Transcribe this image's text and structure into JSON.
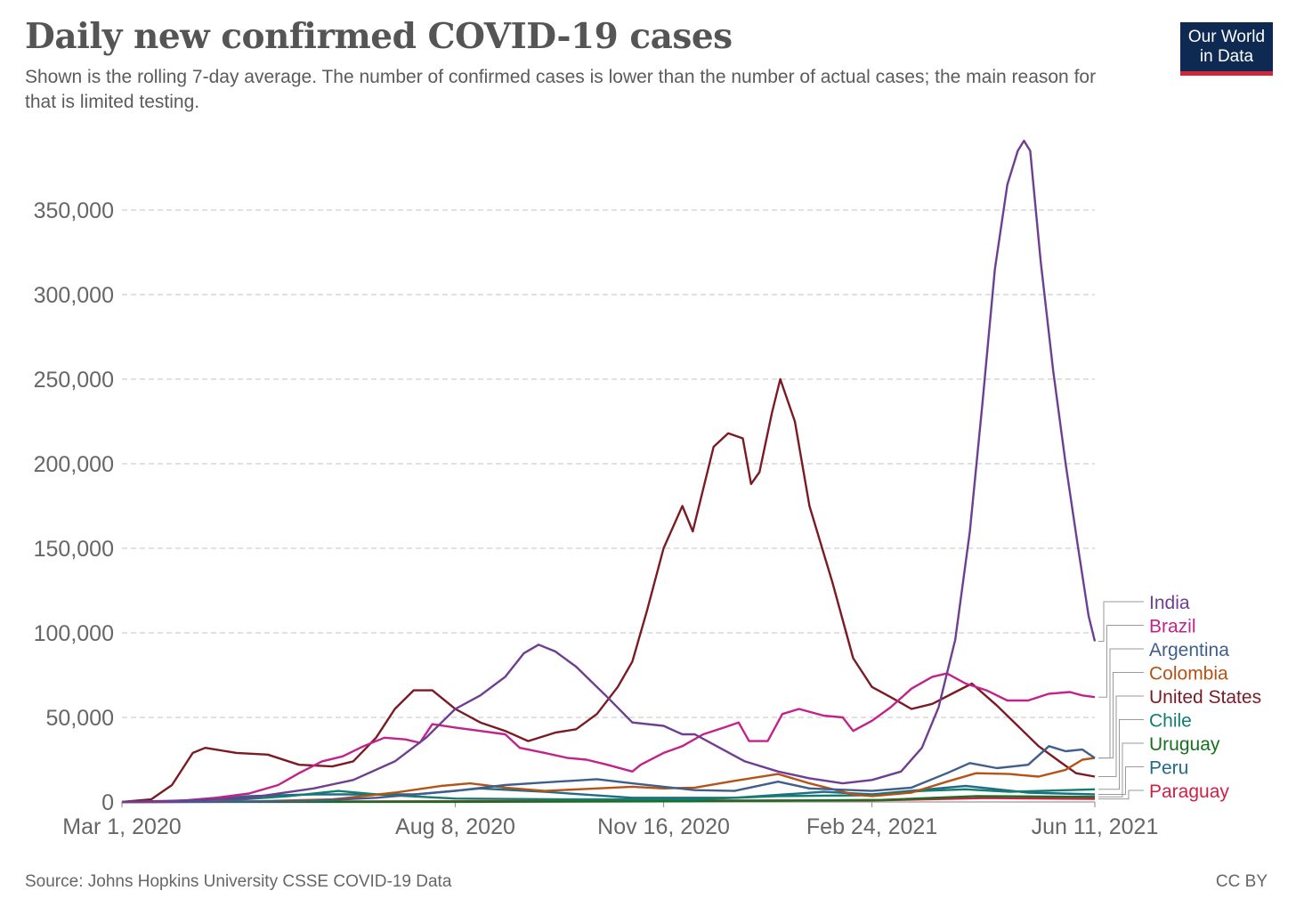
{
  "header": {
    "title": "Daily new confirmed COVID-19 cases",
    "subtitle": "Shown is the rolling 7-day average. The number of confirmed cases is lower than the number of actual cases; the main reason for that is limited testing.",
    "logo_line1": "Our World",
    "logo_line2": "in Data"
  },
  "footer": {
    "source": "Source: Johns Hopkins University CSSE COVID-19 Data",
    "license": "CC BY"
  },
  "chart_data": {
    "type": "line",
    "title": "Daily new confirmed COVID-19 cases",
    "subtitle": "Shown is the rolling 7-day average. The number of confirmed cases is lower than the number of actual cases; the main reason for that is limited testing.",
    "xlabel": "",
    "ylabel": "",
    "xlim": [
      "2020-03-01",
      "2021-06-11"
    ],
    "ylim": [
      0,
      390000
    ],
    "x_ticks": [
      "Mar 1, 2020",
      "Aug 8, 2020",
      "Nov 16, 2020",
      "Feb 24, 2021",
      "Jun 11, 2021"
    ],
    "y_ticks": [
      {
        "value": 0,
        "label": "0"
      },
      {
        "value": 50000,
        "label": "50,000"
      },
      {
        "value": 100000,
        "label": "100,000"
      },
      {
        "value": 150000,
        "label": "150,000"
      },
      {
        "value": 200000,
        "label": "200,000"
      },
      {
        "value": 250000,
        "label": "250,000"
      },
      {
        "value": 300000,
        "label": "300,000"
      },
      {
        "value": 350000,
        "label": "350,000"
      }
    ],
    "grid": "horizontal dashed",
    "legend": "right, labels at line ends",
    "series": [
      {
        "name": "India",
        "color": "#6d3e91",
        "points": [
          [
            "2020-03-01",
            0
          ],
          [
            "2020-04-01",
            900
          ],
          [
            "2020-05-01",
            2500
          ],
          [
            "2020-06-01",
            8000
          ],
          [
            "2020-06-20",
            13000
          ],
          [
            "2020-07-10",
            24000
          ],
          [
            "2020-07-25",
            38000
          ],
          [
            "2020-08-08",
            55000
          ],
          [
            "2020-08-20",
            63000
          ],
          [
            "2020-09-01",
            74000
          ],
          [
            "2020-09-10",
            88000
          ],
          [
            "2020-09-17",
            93000
          ],
          [
            "2020-09-25",
            89000
          ],
          [
            "2020-10-05",
            80000
          ],
          [
            "2020-10-20",
            62000
          ],
          [
            "2020-11-01",
            47000
          ],
          [
            "2020-11-16",
            45000
          ],
          [
            "2020-11-25",
            40000
          ],
          [
            "2020-12-01",
            40000
          ],
          [
            "2020-12-10",
            34000
          ],
          [
            "2020-12-25",
            24000
          ],
          [
            "2021-01-10",
            18000
          ],
          [
            "2021-01-25",
            14000
          ],
          [
            "2021-02-10",
            11000
          ],
          [
            "2021-02-24",
            13000
          ],
          [
            "2021-03-10",
            18000
          ],
          [
            "2021-03-20",
            32000
          ],
          [
            "2021-03-28",
            56000
          ],
          [
            "2021-04-05",
            96000
          ],
          [
            "2021-04-12",
            160000
          ],
          [
            "2021-04-18",
            235000
          ],
          [
            "2021-04-24",
            315000
          ],
          [
            "2021-04-30",
            365000
          ],
          [
            "2021-05-05",
            385000
          ],
          [
            "2021-05-08",
            391000
          ],
          [
            "2021-05-11",
            385000
          ],
          [
            "2021-05-16",
            320000
          ],
          [
            "2021-05-22",
            255000
          ],
          [
            "2021-05-28",
            200000
          ],
          [
            "2021-06-03",
            150000
          ],
          [
            "2021-06-08",
            110000
          ],
          [
            "2021-06-11",
            95000
          ]
        ]
      },
      {
        "name": "Brazil",
        "color": "#c2228b",
        "points": [
          [
            "2020-03-01",
            0
          ],
          [
            "2020-03-20",
            200
          ],
          [
            "2020-04-01",
            1000
          ],
          [
            "2020-04-15",
            2500
          ],
          [
            "2020-05-01",
            5000
          ],
          [
            "2020-05-15",
            10000
          ],
          [
            "2020-05-25",
            17000
          ],
          [
            "2020-06-05",
            24000
          ],
          [
            "2020-06-15",
            27000
          ],
          [
            "2020-06-25",
            33000
          ],
          [
            "2020-07-05",
            38000
          ],
          [
            "2020-07-15",
            37000
          ],
          [
            "2020-07-22",
            35000
          ],
          [
            "2020-07-28",
            46000
          ],
          [
            "2020-08-08",
            44000
          ],
          [
            "2020-08-20",
            42000
          ],
          [
            "2020-09-01",
            40000
          ],
          [
            "2020-09-08",
            32000
          ],
          [
            "2020-09-20",
            29000
          ],
          [
            "2020-10-01",
            26000
          ],
          [
            "2020-10-10",
            25000
          ],
          [
            "2020-10-20",
            22000
          ],
          [
            "2020-11-01",
            18000
          ],
          [
            "2020-11-05",
            22000
          ],
          [
            "2020-11-16",
            29000
          ],
          [
            "2020-11-25",
            33000
          ],
          [
            "2020-12-05",
            40000
          ],
          [
            "2020-12-15",
            44000
          ],
          [
            "2020-12-22",
            47000
          ],
          [
            "2020-12-27",
            36000
          ],
          [
            "2021-01-05",
            36000
          ],
          [
            "2021-01-12",
            52000
          ],
          [
            "2021-01-20",
            55000
          ],
          [
            "2021-02-01",
            51000
          ],
          [
            "2021-02-10",
            50000
          ],
          [
            "2021-02-15",
            42000
          ],
          [
            "2021-02-24",
            48000
          ],
          [
            "2021-03-05",
            56000
          ],
          [
            "2021-03-15",
            67000
          ],
          [
            "2021-03-25",
            74000
          ],
          [
            "2021-04-01",
            76000
          ],
          [
            "2021-04-10",
            70000
          ],
          [
            "2021-04-20",
            66000
          ],
          [
            "2021-04-30",
            60000
          ],
          [
            "2021-05-10",
            60000
          ],
          [
            "2021-05-20",
            64000
          ],
          [
            "2021-05-30",
            65000
          ],
          [
            "2021-06-05",
            63000
          ],
          [
            "2021-06-11",
            62000
          ]
        ]
      },
      {
        "name": "Argentina",
        "color": "#3f5e8c",
        "points": [
          [
            "2020-03-01",
            0
          ],
          [
            "2020-05-01",
            200
          ],
          [
            "2020-06-01",
            700
          ],
          [
            "2020-07-01",
            2500
          ],
          [
            "2020-08-08",
            6500
          ],
          [
            "2020-09-01",
            10000
          ],
          [
            "2020-09-20",
            11500
          ],
          [
            "2020-10-15",
            13500
          ],
          [
            "2020-11-01",
            11000
          ],
          [
            "2020-11-16",
            9000
          ],
          [
            "2020-12-01",
            7000
          ],
          [
            "2020-12-20",
            6500
          ],
          [
            "2021-01-10",
            12000
          ],
          [
            "2021-01-25",
            8000
          ],
          [
            "2021-02-24",
            6500
          ],
          [
            "2021-03-15",
            8500
          ],
          [
            "2021-04-01",
            17000
          ],
          [
            "2021-04-12",
            23000
          ],
          [
            "2021-04-25",
            20000
          ],
          [
            "2021-05-10",
            22000
          ],
          [
            "2021-05-20",
            33000
          ],
          [
            "2021-05-28",
            30000
          ],
          [
            "2021-06-05",
            31000
          ],
          [
            "2021-06-11",
            26000
          ]
        ]
      },
      {
        "name": "Colombia",
        "color": "#b55317",
        "points": [
          [
            "2020-03-01",
            0
          ],
          [
            "2020-05-01",
            300
          ],
          [
            "2020-06-10",
            1500
          ],
          [
            "2020-07-10",
            5500
          ],
          [
            "2020-08-01",
            9500
          ],
          [
            "2020-08-15",
            11000
          ],
          [
            "2020-09-01",
            8500
          ],
          [
            "2020-09-20",
            6500
          ],
          [
            "2020-10-15",
            8000
          ],
          [
            "2020-11-01",
            9000
          ],
          [
            "2020-11-16",
            8000
          ],
          [
            "2020-12-01",
            8500
          ],
          [
            "2020-12-20",
            12500
          ],
          [
            "2021-01-10",
            16500
          ],
          [
            "2021-01-25",
            11000
          ],
          [
            "2021-02-15",
            4500
          ],
          [
            "2021-02-24",
            3500
          ],
          [
            "2021-03-15",
            5500
          ],
          [
            "2021-04-01",
            12000
          ],
          [
            "2021-04-15",
            17000
          ],
          [
            "2021-05-01",
            16500
          ],
          [
            "2021-05-15",
            15000
          ],
          [
            "2021-05-28",
            19000
          ],
          [
            "2021-06-05",
            25000
          ],
          [
            "2021-06-11",
            26000
          ]
        ]
      },
      {
        "name": "United States",
        "color": "#7a1b24",
        "points": [
          [
            "2020-03-01",
            0
          ],
          [
            "2020-03-15",
            1500
          ],
          [
            "2020-03-25",
            10000
          ],
          [
            "2020-04-04",
            29000
          ],
          [
            "2020-04-10",
            32000
          ],
          [
            "2020-04-25",
            29000
          ],
          [
            "2020-05-10",
            28000
          ],
          [
            "2020-05-25",
            22000
          ],
          [
            "2020-06-10",
            21000
          ],
          [
            "2020-06-20",
            24000
          ],
          [
            "2020-07-01",
            38000
          ],
          [
            "2020-07-10",
            55000
          ],
          [
            "2020-07-19",
            66000
          ],
          [
            "2020-07-28",
            66000
          ],
          [
            "2020-08-08",
            55000
          ],
          [
            "2020-08-20",
            47000
          ],
          [
            "2020-09-01",
            42000
          ],
          [
            "2020-09-12",
            36000
          ],
          [
            "2020-09-25",
            41000
          ],
          [
            "2020-10-05",
            43000
          ],
          [
            "2020-10-15",
            52000
          ],
          [
            "2020-10-25",
            68000
          ],
          [
            "2020-11-01",
            83000
          ],
          [
            "2020-11-08",
            113000
          ],
          [
            "2020-11-16",
            150000
          ],
          [
            "2020-11-25",
            175000
          ],
          [
            "2020-11-30",
            160000
          ],
          [
            "2020-12-05",
            185000
          ],
          [
            "2020-12-10",
            210000
          ],
          [
            "2020-12-17",
            218000
          ],
          [
            "2020-12-24",
            215000
          ],
          [
            "2020-12-28",
            188000
          ],
          [
            "2021-01-01",
            195000
          ],
          [
            "2021-01-07",
            230000
          ],
          [
            "2021-01-11",
            250000
          ],
          [
            "2021-01-18",
            225000
          ],
          [
            "2021-01-25",
            175000
          ],
          [
            "2021-02-05",
            130000
          ],
          [
            "2021-02-15",
            85000
          ],
          [
            "2021-02-24",
            68000
          ],
          [
            "2021-03-05",
            62000
          ],
          [
            "2021-03-15",
            55000
          ],
          [
            "2021-03-25",
            58000
          ],
          [
            "2021-04-05",
            65000
          ],
          [
            "2021-04-13",
            70000
          ],
          [
            "2021-04-25",
            57000
          ],
          [
            "2021-05-05",
            45000
          ],
          [
            "2021-05-15",
            33000
          ],
          [
            "2021-05-25",
            24000
          ],
          [
            "2021-06-02",
            17000
          ],
          [
            "2021-06-11",
            15000
          ]
        ]
      },
      {
        "name": "Chile",
        "color": "#117e6e",
        "points": [
          [
            "2020-03-01",
            0
          ],
          [
            "2020-04-15",
            400
          ],
          [
            "2020-05-20",
            3500
          ],
          [
            "2020-06-13",
            6500
          ],
          [
            "2020-07-01",
            4500
          ],
          [
            "2020-08-08",
            2000
          ],
          [
            "2020-10-01",
            1500
          ],
          [
            "2020-12-01",
            1500
          ],
          [
            "2021-01-10",
            3500
          ],
          [
            "2021-02-24",
            4000
          ],
          [
            "2021-03-20",
            6500
          ],
          [
            "2021-04-10",
            7500
          ],
          [
            "2021-05-01",
            6000
          ],
          [
            "2021-06-11",
            7500
          ]
        ]
      },
      {
        "name": "Uruguay",
        "color": "#18701f",
        "points": [
          [
            "2020-03-01",
            0
          ],
          [
            "2020-08-08",
            50
          ],
          [
            "2020-12-01",
            450
          ],
          [
            "2021-01-15",
            800
          ],
          [
            "2021-03-01",
            1200
          ],
          [
            "2021-04-15",
            3500
          ],
          [
            "2021-06-11",
            3000
          ]
        ]
      },
      {
        "name": "Peru",
        "color": "#226b88",
        "points": [
          [
            "2020-03-01",
            0
          ],
          [
            "2020-04-01",
            600
          ],
          [
            "2020-05-01",
            3500
          ],
          [
            "2020-06-01",
            4500
          ],
          [
            "2020-07-20",
            4500
          ],
          [
            "2020-08-20",
            8000
          ],
          [
            "2020-09-20",
            6000
          ],
          [
            "2020-11-01",
            2500
          ],
          [
            "2020-12-20",
            2500
          ],
          [
            "2021-02-01",
            6000
          ],
          [
            "2021-02-24",
            4500
          ],
          [
            "2021-04-10",
            9500
          ],
          [
            "2021-05-10",
            5500
          ],
          [
            "2021-06-11",
            4500
          ]
        ]
      },
      {
        "name": "Paraguay",
        "color": "#cf1f46",
        "points": [
          [
            "2020-03-01",
            0
          ],
          [
            "2020-08-08",
            400
          ],
          [
            "2020-11-01",
            800
          ],
          [
            "2021-02-24",
            900
          ],
          [
            "2021-04-20",
            2300
          ],
          [
            "2021-06-11",
            1800
          ]
        ]
      }
    ]
  }
}
